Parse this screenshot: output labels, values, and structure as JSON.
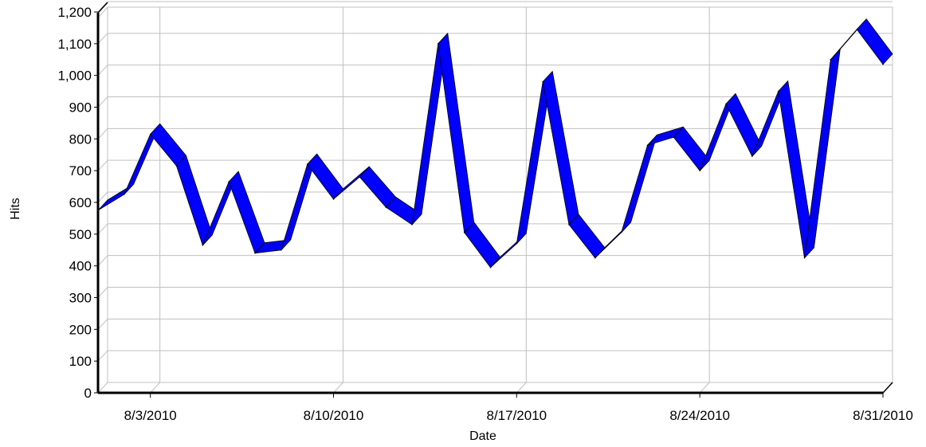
{
  "chart_data": {
    "type": "line",
    "style": "3d-ribbon",
    "title": "",
    "xlabel": "Date",
    "ylabel": "Hits",
    "ylim": [
      0,
      1200
    ],
    "xlim": [
      "8/1/2010",
      "8/31/2010"
    ],
    "y_ticks": [
      0,
      100,
      200,
      300,
      400,
      500,
      600,
      700,
      800,
      900,
      1000,
      1100,
      1200
    ],
    "y_tick_labels": [
      "0",
      "100",
      "200",
      "300",
      "400",
      "500",
      "600",
      "700",
      "800",
      "900",
      "1,000",
      "1,100",
      "1,200"
    ],
    "x_ticks": [
      "8/3/2010",
      "8/10/2010",
      "8/17/2010",
      "8/24/2010",
      "8/31/2010"
    ],
    "grid": true,
    "legend": "none",
    "colors": {
      "series": "#0000ff",
      "ribbon_edge": "#000000",
      "grid": "#c0c0c0",
      "axis": "#000000"
    },
    "series": [
      {
        "x": [
          "8/1/2010",
          "8/2/2010",
          "8/3/2010",
          "8/4/2010",
          "8/5/2010",
          "8/6/2010",
          "8/7/2010",
          "8/8/2010",
          "8/9/2010",
          "8/10/2010",
          "8/11/2010",
          "8/12/2010",
          "8/13/2010",
          "8/14/2010",
          "8/15/2010",
          "8/16/2010",
          "8/17/2010",
          "8/18/2010",
          "8/19/2010",
          "8/20/2010",
          "8/21/2010",
          "8/22/2010",
          "8/23/2010",
          "8/24/2010",
          "8/25/2010",
          "8/26/2010",
          "8/27/2010",
          "8/28/2010",
          "8/29/2010",
          "8/30/2010",
          "8/31/2010"
        ],
        "values": [
          575,
          625,
          815,
          715,
          465,
          665,
          440,
          450,
          720,
          610,
          680,
          585,
          530,
          1100,
          505,
          395,
          470,
          980,
          530,
          425,
          505,
          780,
          805,
          700,
          910,
          745,
          950,
          425,
          1050,
          1145,
          1035
        ]
      }
    ]
  }
}
